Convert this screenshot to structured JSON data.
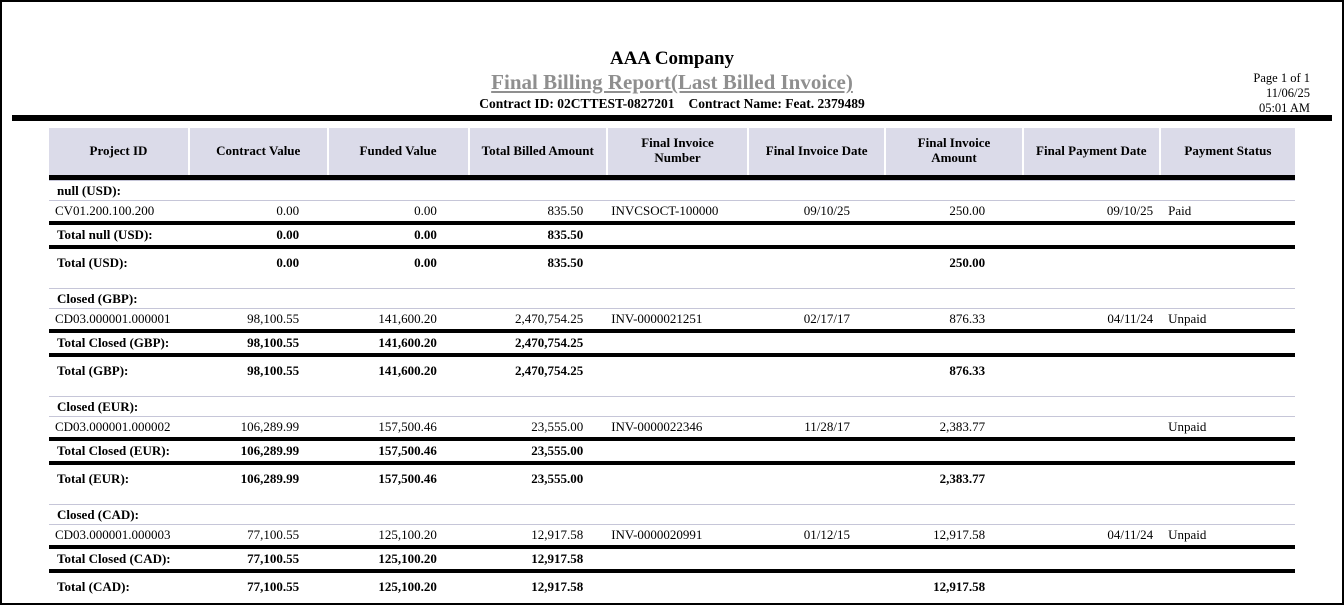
{
  "header": {
    "company": "AAA Company",
    "report_title": "Final Billing Report(Last Billed Invoice)",
    "contract_id": "Contract ID: 02CTTEST-0827201",
    "contract_name": "Contract Name: Feat. 2379489",
    "page_info": {
      "page": "Page 1 of 1",
      "date": "11/06/25",
      "time": "05:01 AM"
    }
  },
  "colors": {
    "header_bg": "#dbdbe9",
    "row_border": "#c6c6d8",
    "subtitle": "#8f8f8f"
  },
  "table": {
    "columns": [
      "Project ID",
      "Contract Value",
      "Funded Value",
      "Total Billed Amount",
      "Final Invoice Number",
      "Final Invoice Date",
      "Final Invoice Amount",
      "Final Payment Date",
      "Payment Status"
    ],
    "sections": [
      {
        "group_label": "null (USD):",
        "rows": [
          [
            "CV01.200.100.200",
            "0.00",
            "0.00",
            "835.50",
            "INVCSOCT-100000",
            "09/10/25",
            "250.00",
            "09/10/25",
            "Paid"
          ]
        ],
        "group_total": [
          "Total null (USD):",
          "0.00",
          "0.00",
          "835.50",
          "",
          "",
          "",
          "",
          ""
        ],
        "currency_total": [
          "Total (USD):",
          "0.00",
          "0.00",
          "835.50",
          "",
          "",
          "250.00",
          "",
          ""
        ]
      },
      {
        "group_label": "Closed (GBP):",
        "rows": [
          [
            "CD03.000001.000001",
            "98,100.55",
            "141,600.20",
            "2,470,754.25",
            "INV-0000021251",
            "02/17/17",
            "876.33",
            "04/11/24",
            "Unpaid"
          ]
        ],
        "group_total": [
          "Total Closed (GBP):",
          "98,100.55",
          "141,600.20",
          "2,470,754.25",
          "",
          "",
          "",
          "",
          ""
        ],
        "currency_total": [
          "Total (GBP):",
          "98,100.55",
          "141,600.20",
          "2,470,754.25",
          "",
          "",
          "876.33",
          "",
          ""
        ]
      },
      {
        "group_label": "Closed (EUR):",
        "rows": [
          [
            "CD03.000001.000002",
            "106,289.99",
            "157,500.46",
            "23,555.00",
            "INV-0000022346",
            "11/28/17",
            "2,383.77",
            "",
            "Unpaid"
          ]
        ],
        "group_total": [
          "Total Closed (EUR):",
          "106,289.99",
          "157,500.46",
          "23,555.00",
          "",
          "",
          "",
          "",
          ""
        ],
        "currency_total": [
          "Total (EUR):",
          "106,289.99",
          "157,500.46",
          "23,555.00",
          "",
          "",
          "2,383.77",
          "",
          ""
        ]
      },
      {
        "group_label": "Closed (CAD):",
        "rows": [
          [
            "CD03.000001.000003",
            "77,100.55",
            "125,100.20",
            "12,917.58",
            "INV-0000020991",
            "01/12/15",
            "12,917.58",
            "04/11/24",
            "Unpaid"
          ]
        ],
        "group_total": [
          "Total Closed (CAD):",
          "77,100.55",
          "125,100.20",
          "12,917.58",
          "",
          "",
          "",
          "",
          ""
        ],
        "currency_total": [
          "Total (CAD):",
          "77,100.55",
          "125,100.20",
          "12,917.58",
          "",
          "",
          "12,917.58",
          "",
          ""
        ]
      }
    ]
  }
}
